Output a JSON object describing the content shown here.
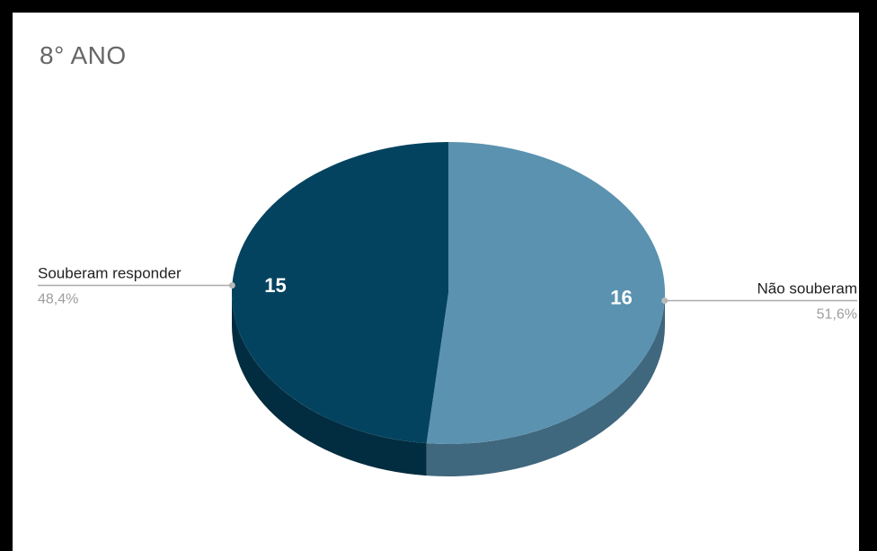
{
  "chart_data": {
    "type": "pie",
    "title": "8° ANO",
    "slices": [
      {
        "label": "Não souberam",
        "value": 16,
        "percent": "51,6%",
        "color": "#5b92b0",
        "side_color": "#3f677d"
      },
      {
        "label": "Souberam responder",
        "value": 15,
        "percent": "48,4%",
        "color": "#03435f",
        "side_color": "#022c3f"
      }
    ],
    "legend": "labels-outside",
    "style": "3d"
  }
}
